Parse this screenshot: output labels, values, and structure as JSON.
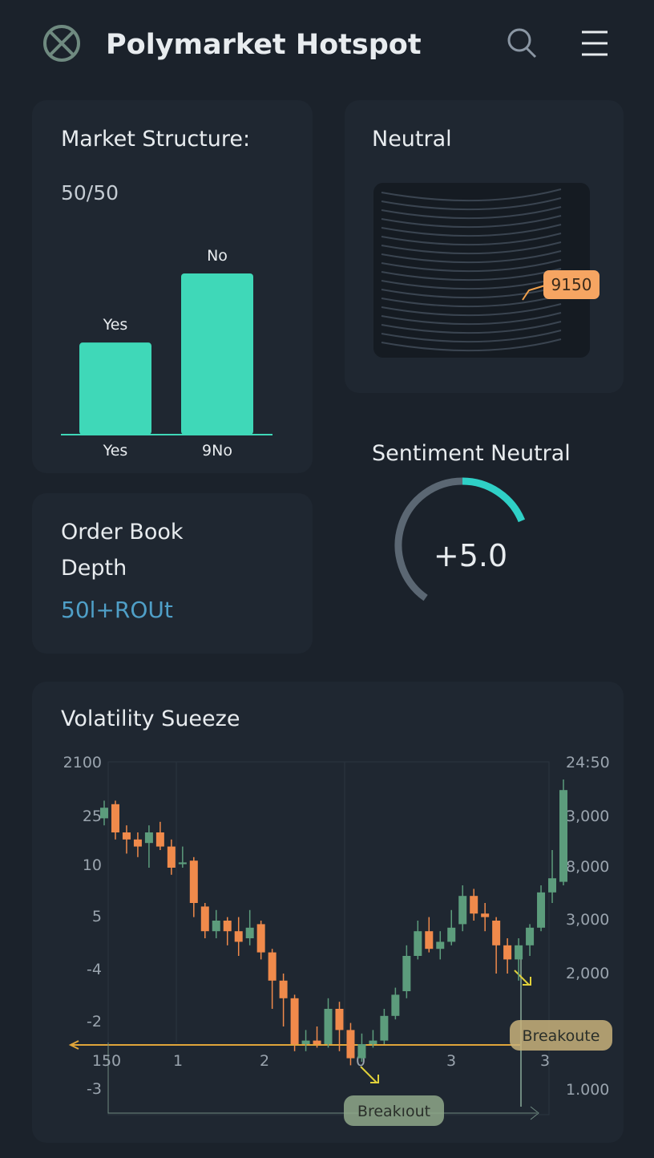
{
  "header": {
    "title": "Polymarket Hotspot"
  },
  "market_structure": {
    "title": "Market Structure:",
    "subtitle": "50/50",
    "chart_data": {
      "type": "bar",
      "categories": [
        "Yes",
        "9No"
      ],
      "bar_labels": [
        "Yes",
        "No"
      ],
      "values": [
        40,
        70
      ],
      "ylim": [
        0,
        70
      ],
      "color": "#3fd8b8"
    }
  },
  "neutral": {
    "title": "Neutral",
    "badge": "9150"
  },
  "sentiment": {
    "title": "Sentiment Neutral",
    "chart_data": {
      "type": "gauge",
      "value": 5,
      "value_label": "+5.0",
      "lim": [
        -10,
        10
      ],
      "color": "#2fd0c6"
    }
  },
  "order_book": {
    "title_lines": [
      "Order Book",
      "Depth"
    ],
    "value": "50l+ROUt"
  },
  "volatility": {
    "title": "Volatility Sueeze",
    "chart_data": {
      "type": "candlestick",
      "ylim": [
        0,
        100
      ],
      "up_color": "#5c9c7c",
      "down_color": "#f08a4b",
      "left_axis_labels": [
        "2100",
        "25",
        "10",
        "5",
        "-4",
        "-2",
        "-3"
      ],
      "right_axis_labels": [
        "24:50",
        "3,000",
        "8,000",
        "3,000",
        "2,000",
        "1.000"
      ],
      "x_axis_labels": [
        "150",
        "1",
        "2",
        "0",
        "3",
        "3"
      ],
      "annotations": [
        "Breakoute",
        "Breakıout"
      ],
      "open": [
        84,
        88,
        80,
        78,
        77,
        80,
        76,
        71,
        72,
        59,
        52,
        55,
        52,
        50,
        54,
        46,
        38,
        33,
        20,
        21,
        20,
        30,
        24,
        16,
        20,
        21,
        28,
        35,
        45,
        52,
        47,
        49,
        54,
        62,
        57,
        55,
        48,
        44,
        48,
        53,
        63,
        66
      ],
      "close": [
        87,
        80,
        78,
        76,
        80,
        76,
        70,
        71.5,
        60,
        52,
        55,
        52,
        49,
        53,
        46,
        38,
        33,
        20,
        21,
        20,
        30,
        24,
        16,
        20,
        21,
        28,
        34,
        45,
        52,
        47,
        49,
        53,
        62,
        57,
        56,
        48,
        44,
        48,
        53,
        63,
        67,
        92
      ],
      "high": [
        89,
        89,
        82,
        80,
        82,
        83,
        78,
        76,
        73,
        60,
        58,
        56,
        56,
        58,
        55,
        47,
        40,
        34,
        24,
        25,
        33,
        32,
        26,
        23,
        24,
        30,
        36,
        48,
        55,
        56,
        52,
        58,
        65,
        64,
        60,
        56,
        50,
        50,
        54,
        65,
        75,
        95
      ],
      "low": [
        82,
        78,
        74,
        73,
        70,
        75,
        68,
        70,
        56,
        50,
        50,
        48,
        45,
        48,
        44,
        30,
        25,
        18,
        18,
        19,
        19,
        18,
        14,
        15,
        19,
        20,
        27,
        33,
        44,
        46,
        44,
        48,
        52,
        55,
        52,
        40,
        40,
        38,
        45,
        52,
        60,
        65
      ]
    }
  }
}
